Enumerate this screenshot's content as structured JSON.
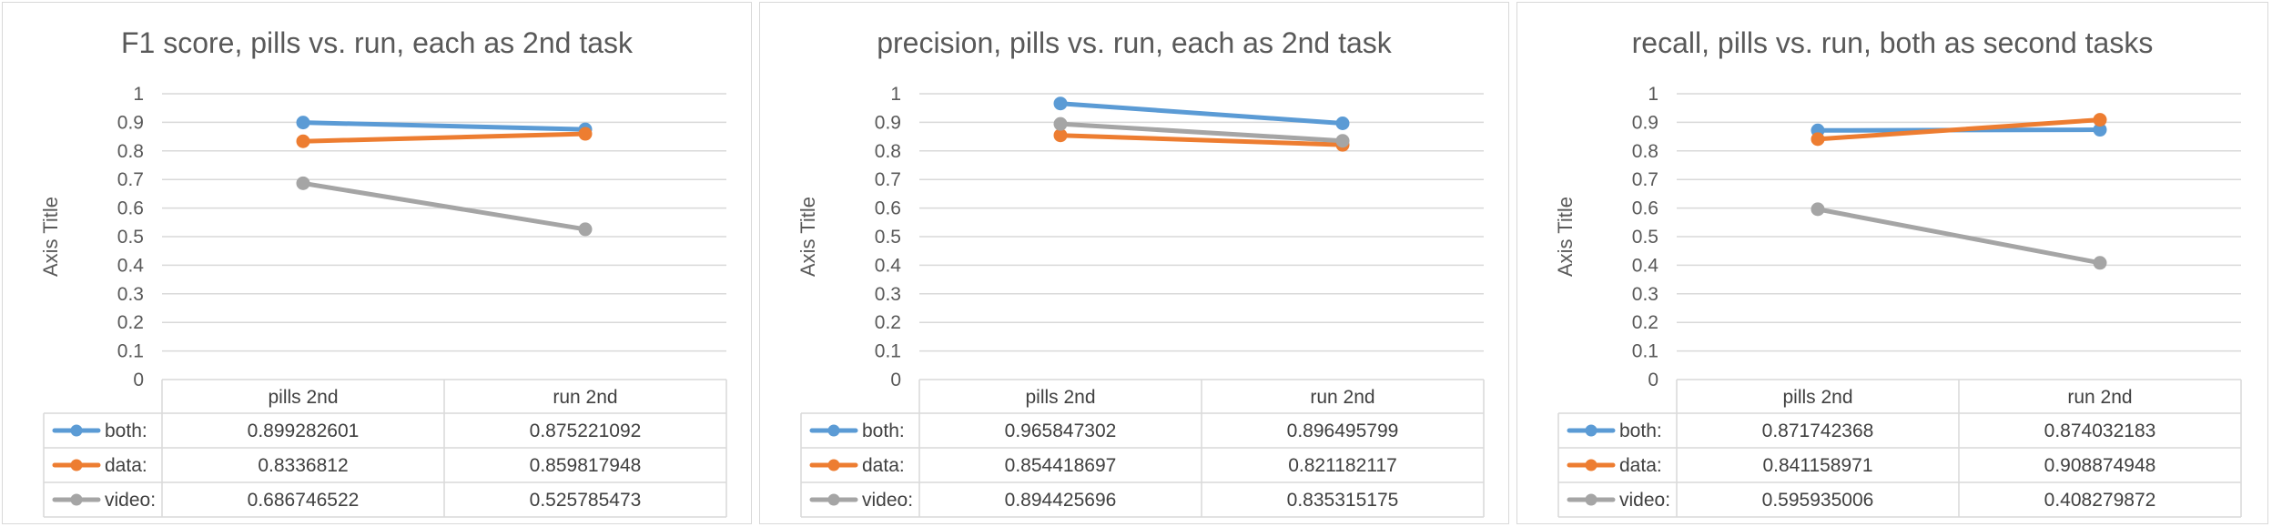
{
  "chart_data": [
    {
      "type": "line",
      "title": "F1 score, pills vs. run, each as 2nd task",
      "ylabel": "Axis Title",
      "ylim": [
        0,
        1
      ],
      "yticks": [
        "0",
        "0.1",
        "0.2",
        "0.3",
        "0.4",
        "0.5",
        "0.6",
        "0.7",
        "0.8",
        "0.9",
        "1"
      ],
      "categories": [
        "pills 2nd",
        "run 2nd"
      ],
      "series": [
        {
          "name": "both:",
          "color": "#5b9bd5",
          "values": [
            0.899282601,
            0.875221092
          ],
          "labels": [
            "0.899282601",
            "0.875221092"
          ]
        },
        {
          "name": "data:",
          "color": "#ed7d31",
          "values": [
            0.8336812,
            0.859817948
          ],
          "labels": [
            "0.8336812",
            "0.859817948"
          ]
        },
        {
          "name": "video:",
          "color": "#a5a5a5",
          "values": [
            0.686746522,
            0.525785473
          ],
          "labels": [
            "0.686746522",
            "0.525785473"
          ]
        }
      ],
      "grid": true,
      "legend": "data table"
    },
    {
      "type": "line",
      "title": "precision, pills vs. run, each as 2nd task",
      "ylabel": "Axis Title",
      "ylim": [
        0,
        1
      ],
      "yticks": [
        "0",
        "0.1",
        "0.2",
        "0.3",
        "0.4",
        "0.5",
        "0.6",
        "0.7",
        "0.8",
        "0.9",
        "1"
      ],
      "categories": [
        "pills 2nd",
        "run 2nd"
      ],
      "series": [
        {
          "name": "both:",
          "color": "#5b9bd5",
          "values": [
            0.965847302,
            0.896495799
          ],
          "labels": [
            "0.965847302",
            "0.896495799"
          ]
        },
        {
          "name": "data:",
          "color": "#ed7d31",
          "values": [
            0.854418697,
            0.821182117
          ],
          "labels": [
            "0.854418697",
            "0.821182117"
          ]
        },
        {
          "name": "video:",
          "color": "#a5a5a5",
          "values": [
            0.894425696,
            0.835315175
          ],
          "labels": [
            "0.894425696",
            "0.835315175"
          ]
        }
      ],
      "grid": true,
      "legend": "data table"
    },
    {
      "type": "line",
      "title": "recall, pills vs. run, both as second tasks",
      "ylabel": "Axis Title",
      "ylim": [
        0,
        1
      ],
      "yticks": [
        "0",
        "0.1",
        "0.2",
        "0.3",
        "0.4",
        "0.5",
        "0.6",
        "0.7",
        "0.8",
        "0.9",
        "1"
      ],
      "categories": [
        "pills 2nd",
        "run 2nd"
      ],
      "series": [
        {
          "name": "both:",
          "color": "#5b9bd5",
          "values": [
            0.871742368,
            0.874032183
          ],
          "labels": [
            "0.871742368",
            "0.874032183"
          ]
        },
        {
          "name": "data:",
          "color": "#ed7d31",
          "values": [
            0.841158971,
            0.908874948
          ],
          "labels": [
            "0.841158971",
            "0.908874948"
          ]
        },
        {
          "name": "video:",
          "color": "#a5a5a5",
          "values": [
            0.595935006,
            0.408279872
          ],
          "labels": [
            "0.595935006",
            "0.408279872"
          ]
        }
      ],
      "grid": true,
      "legend": "data table"
    }
  ]
}
